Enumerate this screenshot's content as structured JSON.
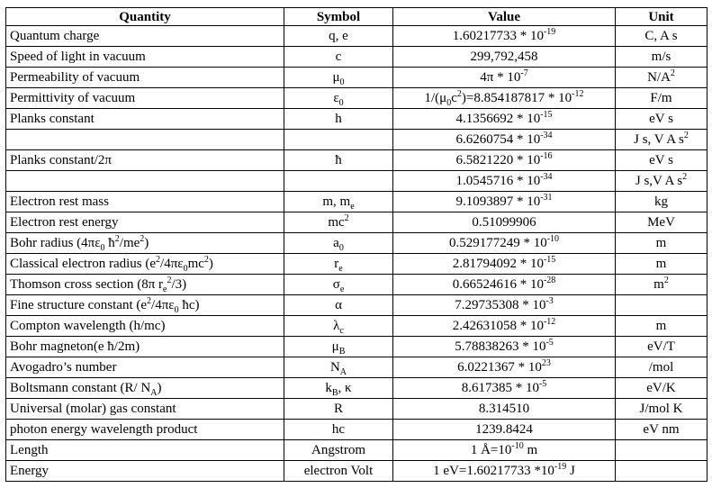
{
  "table": {
    "headers": {
      "quantity": "Quantity",
      "symbol": "Symbol",
      "value": "Value",
      "unit": "Unit"
    },
    "rows": [
      {
        "quantity": "Quantum charge",
        "symbol": "q, e",
        "value": "1.60217733 * 10<sup>-19</sup>",
        "unit": "C, A s"
      },
      {
        "quantity": "Speed of light in vacuum",
        "symbol": "c",
        "value": "299,792,458",
        "unit": "m/s"
      },
      {
        "quantity": "Permeability of vacuum",
        "symbol": "μ<sub>0</sub>",
        "value": "4π * 10<sup>-7</sup>",
        "unit": "N/A<sup>2</sup>"
      },
      {
        "quantity": "Permittivity of vacuum",
        "symbol": "ε<sub>0</sub>",
        "value": "1/(μ<sub>0</sub>c<sup>2</sup>)=8.854187817 * 10<sup>-12</sup>",
        "unit": "F/m"
      },
      {
        "quantity": "Planks constant",
        "symbol": "h",
        "value": "4.1356692 * 10<sup>-15</sup>",
        "unit": "eV s"
      },
      {
        "quantity": "",
        "symbol": "",
        "value": "6.6260754 * 10<sup>-34</sup>",
        "unit": "J s, V A s<sup>2</sup>"
      },
      {
        "quantity": "Planks constant/2π",
        "symbol": "ħ",
        "value": "6.5821220 * 10<sup>-16</sup>",
        "unit": "eV s"
      },
      {
        "quantity": "",
        "symbol": "",
        "value": "1.0545716 * 10<sup>-34</sup>",
        "unit": "J s,V A s<sup>2</sup>"
      },
      {
        "quantity": "Electron rest mass",
        "symbol": "m, m<sub>e</sub>",
        "value": "9.1093897 * 10<sup>-31</sup>",
        "unit": "kg"
      },
      {
        "quantity": "Electron rest energy",
        "symbol": "mc<sup>2</sup>",
        "value": "0.51099906",
        "unit": "MeV"
      },
      {
        "quantity": "Bohr radius (4πε<sub>0</sub> ħ<sup>2</sup>/me<sup>2</sup>)",
        "symbol": "a<sub>0</sub>",
        "value": "0.529177249 * 10<sup>-10</sup>",
        "unit": "m"
      },
      {
        "quantity": "Classical electron radius (e<sup>2</sup>/4πε<sub>0</sub>mc<sup>2</sup>)",
        "symbol": "r<sub>e</sub>",
        "value": "2.81794092 * 10<sup>-15</sup>",
        "unit": "m"
      },
      {
        "quantity": "Thomson cross section (8π r<sub>e</sub><sup>2</sup>/3)",
        "symbol": "σ<sub>e</sub>",
        "value": "0.66524616 * 10<sup>-28</sup>",
        "unit": "m<sup>2</sup>"
      },
      {
        "quantity": "Fine structure constant (e<sup>2</sup>/4πε<sub>0</sub> ħc)",
        "symbol": "α",
        "value": "7.29735308 * 10<sup>-3</sup>",
        "unit": ""
      },
      {
        "quantity": "Compton wavelength (h/mc)",
        "symbol": "λ<sub>c</sub>",
        "value": "2.42631058 * 10<sup>-12</sup>",
        "unit": "m"
      },
      {
        "quantity": "Bohr magneton(e ħ/2m)",
        "symbol": "μ<sub>B</sub>",
        "value": "5.78838263 * 10<sup>-5</sup>",
        "unit": "eV/T"
      },
      {
        "quantity": "Avogadro’s number",
        "symbol": "N<sub>A</sub>",
        "value": "6.0221367 * 10<sup>23</sup>",
        "unit": "/mol"
      },
      {
        "quantity": "Boltsmann constant (R/ N<sub>A</sub>)",
        "symbol": "k<sub>B</sub>, κ",
        "value": "8.617385 * 10<sup>-5</sup>",
        "unit": "eV/K"
      },
      {
        "quantity": "Universal (molar) gas constant",
        "symbol": "R",
        "value": "8.314510",
        "unit": "J/mol K"
      },
      {
        "quantity": "photon energy wavelength product",
        "symbol": "hc",
        "value": "1239.8424",
        "unit": "eV nm"
      },
      {
        "quantity": "Length",
        "symbol": "Angstrom",
        "value": "1 Å=10<sup>-10</sup> m",
        "unit": ""
      },
      {
        "quantity": "Energy",
        "symbol": "electron Volt",
        "value": "1 eV=1.60217733 *10<sup>-19</sup> J",
        "unit": ""
      }
    ]
  }
}
